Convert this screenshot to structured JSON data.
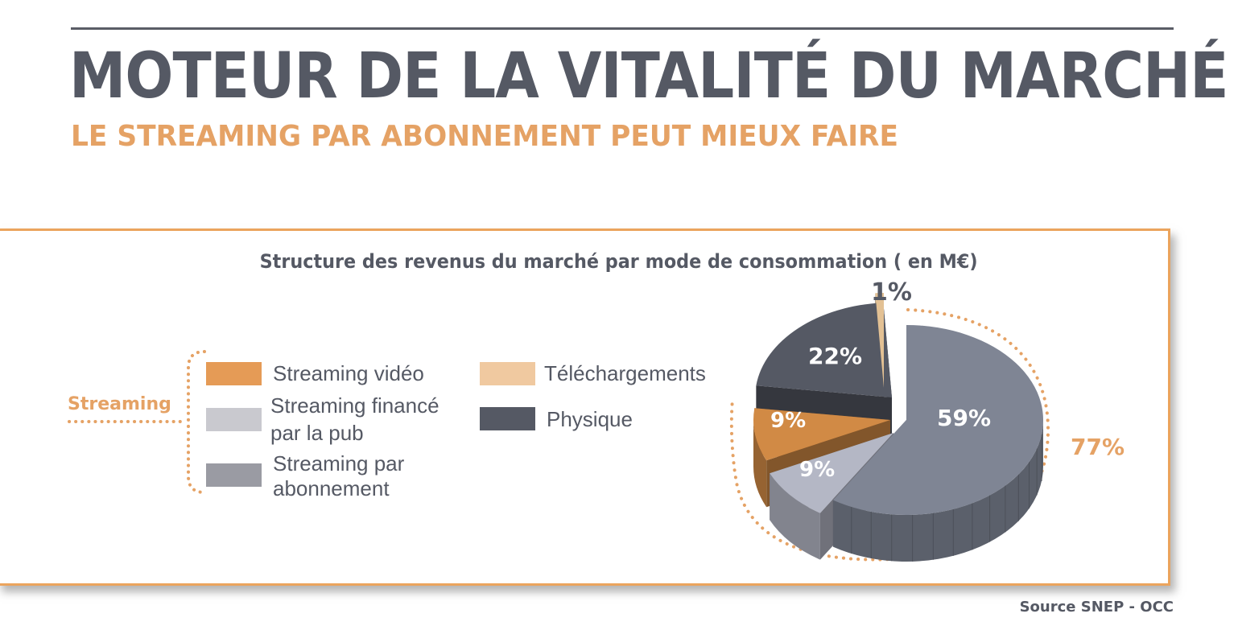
{
  "header": {
    "title": "MOTEUR DE LA VITALITÉ DU MARCHÉ",
    "subtitle": "LE STREAMING PAR ABONNEMENT PEUT MIEUX FAIRE"
  },
  "footer": {
    "source": "Source SNEP - OCC"
  },
  "colors": {
    "title": "#555964",
    "accent": "#e5a265",
    "frame": "#eba45d"
  },
  "chart_data": {
    "type": "pie",
    "title": "Structure des revenus du marché par mode de consommation ( en M€)",
    "unit": "%",
    "slices": [
      {
        "name": "Streaming par abonnement",
        "value": 59,
        "label": "59%",
        "color": "#7f8594"
      },
      {
        "name": "Streaming financé par la pub",
        "value": 9,
        "label": "9%",
        "color": "#b4b7c5"
      },
      {
        "name": "Streaming vidéo",
        "value": 9,
        "label": "9%",
        "color": "#d18a45"
      },
      {
        "name": "Physique",
        "value": 22,
        "label": "22%",
        "color": "#555964"
      },
      {
        "name": "Téléchargements",
        "value": 1,
        "label": "1%",
        "color": "#e3c194"
      }
    ],
    "legend": [
      {
        "key": "Streaming vidéo",
        "lines": [
          "Streaming vidéo"
        ],
        "color": "#e59b56"
      },
      {
        "key": "Streaming financé par la pub",
        "lines": [
          "Streaming financé",
          "par la pub"
        ],
        "color": "#c9c9cf"
      },
      {
        "key": "Streaming par abonnement",
        "lines": [
          "Streaming par",
          "abonnement"
        ],
        "color": "#9a9ba3"
      },
      {
        "key": "Téléchargements",
        "lines": [
          "Téléchargements"
        ],
        "color": "#f0c9a0"
      },
      {
        "key": "Physique",
        "lines": [
          "Physique"
        ],
        "color": "#555964"
      }
    ],
    "group": {
      "label": "Streaming",
      "total": "77%"
    }
  }
}
